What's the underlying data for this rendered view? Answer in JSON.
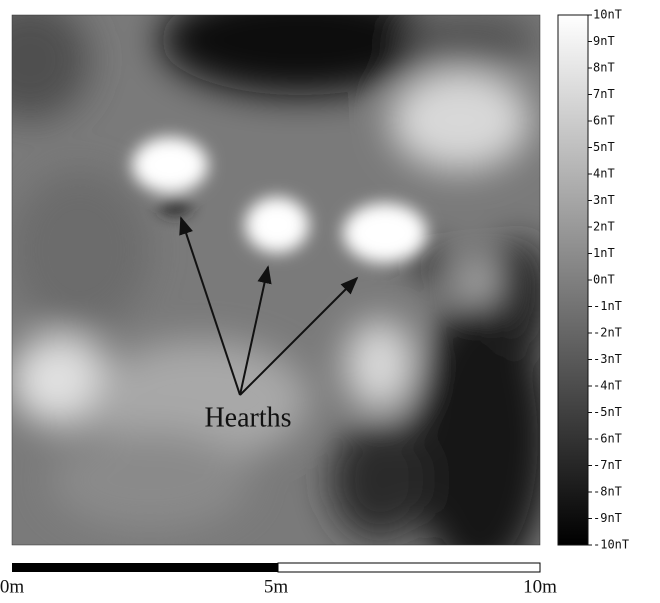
{
  "map": {
    "annotation": "Hearths",
    "colorbar": {
      "labels": [
        "10nT",
        "9nT",
        "8nT",
        "7nT",
        "6nT",
        "5nT",
        "4nT",
        "3nT",
        "2nT",
        "1nT",
        "0nT",
        "-1nT",
        "-2nT",
        "-3nT",
        "-4nT",
        "-5nT",
        "-6nT",
        "-7nT",
        "-8nT",
        "-9nT",
        "-10nT"
      ]
    },
    "scale_bar": {
      "labels": [
        "0m",
        "5m",
        "10m"
      ]
    }
  }
}
